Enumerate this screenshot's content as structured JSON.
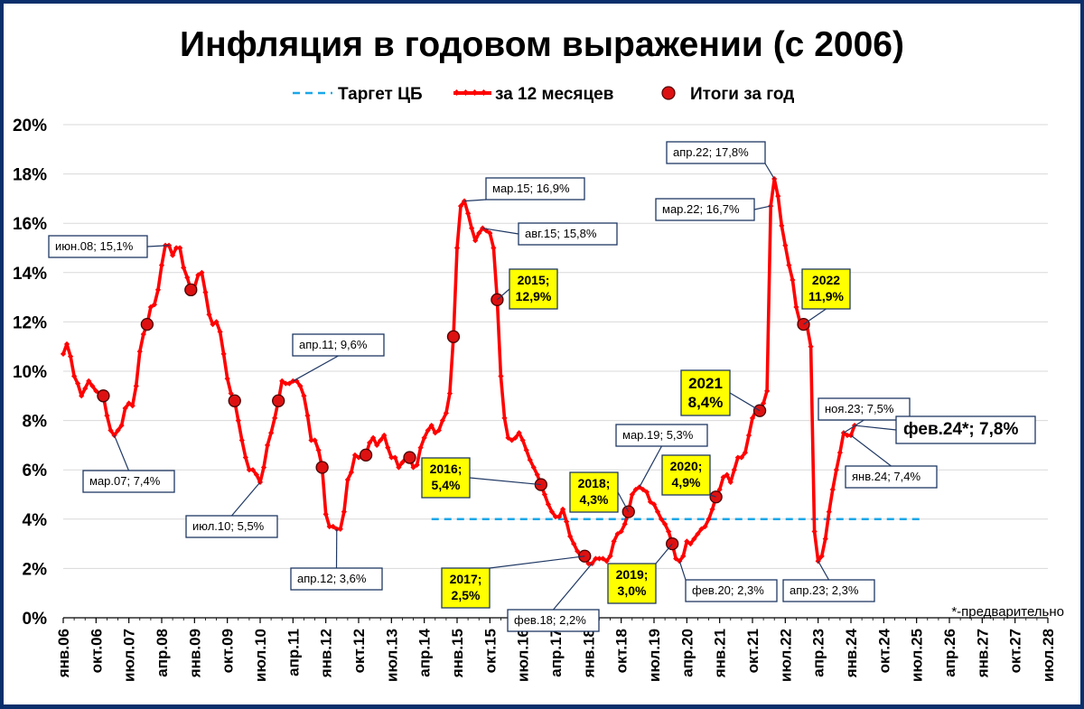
{
  "chart_data": {
    "type": "line",
    "title": "Инфляция в годовом выражении (с 2006)",
    "legend": {
      "placement": "top",
      "items": [
        "Таргет ЦБ",
        "за 12 месяцев",
        "Итоги за год"
      ]
    },
    "footnote": "*-предварительно",
    "y_ticks": [
      "0%",
      "2%",
      "4%",
      "6%",
      "8%",
      "10%",
      "12%",
      "14%",
      "16%",
      "18%",
      "20%"
    ],
    "ylim": [
      0,
      20
    ],
    "x_ticks": [
      "янв.06",
      "окт.06",
      "июл.07",
      "апр.08",
      "янв.09",
      "окт.09",
      "июл.10",
      "апр.11",
      "янв.12",
      "окт.12",
      "июл.13",
      "апр.14",
      "янв.15",
      "окт.15",
      "июл.16",
      "апр.17",
      "янв.18",
      "окт.18",
      "июл.19",
      "апр.20",
      "янв.21",
      "окт.21",
      "июл.22",
      "апр.23",
      "янв.24",
      "окт.24",
      "июл.25",
      "апр.26",
      "янв.27",
      "окт.27",
      "июл.28"
    ],
    "x_range": [
      "2006-01",
      "2028-07"
    ],
    "series": [
      {
        "name": "за 12 месяцев",
        "color": "#ff0000",
        "points": [
          [
            "2006-01",
            10.7
          ],
          [
            "2006-02",
            11.1
          ],
          [
            "2006-03",
            10.6
          ],
          [
            "2006-04",
            9.8
          ],
          [
            "2006-05",
            9.5
          ],
          [
            "2006-06",
            9.0
          ],
          [
            "2006-07",
            9.3
          ],
          [
            "2006-08",
            9.6
          ],
          [
            "2006-09",
            9.4
          ],
          [
            "2006-10",
            9.2
          ],
          [
            "2006-11",
            9.1
          ],
          [
            "2006-12",
            9.0
          ],
          [
            "2007-01",
            8.2
          ],
          [
            "2007-02",
            7.6
          ],
          [
            "2007-03",
            7.4
          ],
          [
            "2007-04",
            7.6
          ],
          [
            "2007-05",
            7.8
          ],
          [
            "2007-06",
            8.5
          ],
          [
            "2007-07",
            8.7
          ],
          [
            "2007-08",
            8.6
          ],
          [
            "2007-09",
            9.4
          ],
          [
            "2007-10",
            10.8
          ],
          [
            "2007-11",
            11.5
          ],
          [
            "2007-12",
            11.9
          ],
          [
            "2008-01",
            12.6
          ],
          [
            "2008-02",
            12.7
          ],
          [
            "2008-03",
            13.3
          ],
          [
            "2008-04",
            14.3
          ],
          [
            "2008-05",
            15.1
          ],
          [
            "2008-06",
            15.1
          ],
          [
            "2008-07",
            14.7
          ],
          [
            "2008-08",
            15.0
          ],
          [
            "2008-09",
            15.0
          ],
          [
            "2008-10",
            14.2
          ],
          [
            "2008-11",
            13.8
          ],
          [
            "2008-12",
            13.3
          ],
          [
            "2009-01",
            13.4
          ],
          [
            "2009-02",
            13.9
          ],
          [
            "2009-03",
            14.0
          ],
          [
            "2009-04",
            13.2
          ],
          [
            "2009-05",
            12.3
          ],
          [
            "2009-06",
            11.9
          ],
          [
            "2009-07",
            12.0
          ],
          [
            "2009-08",
            11.6
          ],
          [
            "2009-09",
            10.7
          ],
          [
            "2009-10",
            9.7
          ],
          [
            "2009-11",
            9.1
          ],
          [
            "2009-12",
            8.8
          ],
          [
            "2010-01",
            8.0
          ],
          [
            "2010-02",
            7.2
          ],
          [
            "2010-03",
            6.5
          ],
          [
            "2010-04",
            6.0
          ],
          [
            "2010-05",
            6.0
          ],
          [
            "2010-06",
            5.8
          ],
          [
            "2010-07",
            5.5
          ],
          [
            "2010-08",
            6.1
          ],
          [
            "2010-09",
            7.0
          ],
          [
            "2010-10",
            7.5
          ],
          [
            "2010-11",
            8.1
          ],
          [
            "2010-12",
            8.8
          ],
          [
            "2011-01",
            9.6
          ],
          [
            "2011-02",
            9.5
          ],
          [
            "2011-03",
            9.5
          ],
          [
            "2011-04",
            9.6
          ],
          [
            "2011-05",
            9.6
          ],
          [
            "2011-06",
            9.4
          ],
          [
            "2011-07",
            9.0
          ],
          [
            "2011-08",
            8.2
          ],
          [
            "2011-09",
            7.2
          ],
          [
            "2011-10",
            7.2
          ],
          [
            "2011-11",
            6.8
          ],
          [
            "2011-12",
            6.1
          ],
          [
            "2012-01",
            4.2
          ],
          [
            "2012-02",
            3.7
          ],
          [
            "2012-03",
            3.7
          ],
          [
            "2012-04",
            3.6
          ],
          [
            "2012-05",
            3.6
          ],
          [
            "2012-06",
            4.3
          ],
          [
            "2012-07",
            5.6
          ],
          [
            "2012-08",
            5.9
          ],
          [
            "2012-09",
            6.6
          ],
          [
            "2012-10",
            6.5
          ],
          [
            "2012-11",
            6.5
          ],
          [
            "2012-12",
            6.6
          ],
          [
            "2013-01",
            7.1
          ],
          [
            "2013-02",
            7.3
          ],
          [
            "2013-03",
            7.0
          ],
          [
            "2013-04",
            7.2
          ],
          [
            "2013-05",
            7.4
          ],
          [
            "2013-06",
            6.9
          ],
          [
            "2013-07",
            6.5
          ],
          [
            "2013-08",
            6.5
          ],
          [
            "2013-09",
            6.1
          ],
          [
            "2013-10",
            6.3
          ],
          [
            "2013-11",
            6.5
          ],
          [
            "2013-12",
            6.5
          ],
          [
            "2014-01",
            6.1
          ],
          [
            "2014-02",
            6.2
          ],
          [
            "2014-03",
            6.9
          ],
          [
            "2014-04",
            7.3
          ],
          [
            "2014-05",
            7.6
          ],
          [
            "2014-06",
            7.8
          ],
          [
            "2014-07",
            7.5
          ],
          [
            "2014-08",
            7.6
          ],
          [
            "2014-09",
            8.0
          ],
          [
            "2014-10",
            8.3
          ],
          [
            "2014-11",
            9.1
          ],
          [
            "2014-12",
            11.4
          ],
          [
            "2015-01",
            15.0
          ],
          [
            "2015-02",
            16.7
          ],
          [
            "2015-03",
            16.9
          ],
          [
            "2015-04",
            16.4
          ],
          [
            "2015-05",
            15.8
          ],
          [
            "2015-06",
            15.3
          ],
          [
            "2015-07",
            15.6
          ],
          [
            "2015-08",
            15.8
          ],
          [
            "2015-09",
            15.7
          ],
          [
            "2015-10",
            15.6
          ],
          [
            "2015-11",
            15.0
          ],
          [
            "2015-12",
            12.9
          ],
          [
            "2016-01",
            9.8
          ],
          [
            "2016-02",
            8.1
          ],
          [
            "2016-03",
            7.3
          ],
          [
            "2016-04",
            7.2
          ],
          [
            "2016-05",
            7.3
          ],
          [
            "2016-06",
            7.5
          ],
          [
            "2016-07",
            7.2
          ],
          [
            "2016-08",
            6.8
          ],
          [
            "2016-09",
            6.4
          ],
          [
            "2016-10",
            6.1
          ],
          [
            "2016-11",
            5.8
          ],
          [
            "2016-12",
            5.4
          ],
          [
            "2017-01",
            5.0
          ],
          [
            "2017-02",
            4.6
          ],
          [
            "2017-03",
            4.3
          ],
          [
            "2017-04",
            4.1
          ],
          [
            "2017-05",
            4.1
          ],
          [
            "2017-06",
            4.4
          ],
          [
            "2017-07",
            3.9
          ],
          [
            "2017-08",
            3.3
          ],
          [
            "2017-09",
            3.0
          ],
          [
            "2017-10",
            2.7
          ],
          [
            "2017-11",
            2.5
          ],
          [
            "2017-12",
            2.5
          ],
          [
            "2018-01",
            2.2
          ],
          [
            "2018-02",
            2.2
          ],
          [
            "2018-03",
            2.4
          ],
          [
            "2018-04",
            2.4
          ],
          [
            "2018-05",
            2.4
          ],
          [
            "2018-06",
            2.3
          ],
          [
            "2018-07",
            2.5
          ],
          [
            "2018-08",
            3.1
          ],
          [
            "2018-09",
            3.4
          ],
          [
            "2018-10",
            3.5
          ],
          [
            "2018-11",
            3.8
          ],
          [
            "2018-12",
            4.3
          ],
          [
            "2019-01",
            5.0
          ],
          [
            "2019-02",
            5.2
          ],
          [
            "2019-03",
            5.3
          ],
          [
            "2019-04",
            5.2
          ],
          [
            "2019-05",
            5.1
          ],
          [
            "2019-06",
            4.7
          ],
          [
            "2019-07",
            4.6
          ],
          [
            "2019-08",
            4.3
          ],
          [
            "2019-09",
            4.0
          ],
          [
            "2019-10",
            3.8
          ],
          [
            "2019-11",
            3.5
          ],
          [
            "2019-12",
            3.0
          ],
          [
            "2020-01",
            2.4
          ],
          [
            "2020-02",
            2.3
          ],
          [
            "2020-03",
            2.5
          ],
          [
            "2020-04",
            3.1
          ],
          [
            "2020-05",
            3.0
          ],
          [
            "2020-06",
            3.2
          ],
          [
            "2020-07",
            3.4
          ],
          [
            "2020-08",
            3.6
          ],
          [
            "2020-09",
            3.7
          ],
          [
            "2020-10",
            4.0
          ],
          [
            "2020-11",
            4.4
          ],
          [
            "2020-12",
            4.9
          ],
          [
            "2021-01",
            5.2
          ],
          [
            "2021-02",
            5.7
          ],
          [
            "2021-03",
            5.8
          ],
          [
            "2021-04",
            5.5
          ],
          [
            "2021-05",
            6.0
          ],
          [
            "2021-06",
            6.5
          ],
          [
            "2021-07",
            6.5
          ],
          [
            "2021-08",
            6.7
          ],
          [
            "2021-09",
            7.4
          ],
          [
            "2021-10",
            8.1
          ],
          [
            "2021-11",
            8.4
          ],
          [
            "2021-12",
            8.4
          ],
          [
            "2022-01",
            8.7
          ],
          [
            "2022-02",
            9.2
          ],
          [
            "2022-03",
            16.7
          ],
          [
            "2022-04",
            17.8
          ],
          [
            "2022-05",
            17.1
          ],
          [
            "2022-06",
            15.9
          ],
          [
            "2022-07",
            15.1
          ],
          [
            "2022-08",
            14.3
          ],
          [
            "2022-09",
            13.7
          ],
          [
            "2022-10",
            12.6
          ],
          [
            "2022-11",
            12.0
          ],
          [
            "2022-12",
            11.9
          ],
          [
            "2023-01",
            11.8
          ],
          [
            "2023-02",
            11.0
          ],
          [
            "2023-03",
            3.5
          ],
          [
            "2023-04",
            2.3
          ],
          [
            "2023-05",
            2.5
          ],
          [
            "2023-06",
            3.2
          ],
          [
            "2023-07",
            4.3
          ],
          [
            "2023-08",
            5.2
          ],
          [
            "2023-09",
            6.0
          ],
          [
            "2023-10",
            6.7
          ],
          [
            "2023-11",
            7.5
          ],
          [
            "2023-12",
            7.4
          ],
          [
            "2024-01",
            7.4
          ],
          [
            "2024-02",
            7.8
          ]
        ]
      },
      {
        "name": "Таргет ЦБ",
        "color": "#1aa7e8",
        "points": [
          [
            "2014-06",
            4.0
          ],
          [
            "2025-09",
            4.0
          ]
        ]
      },
      {
        "name": "Итоги за год",
        "color": "#dd1111",
        "points": [
          [
            "2006-12",
            9.0
          ],
          [
            "2007-12",
            11.9
          ],
          [
            "2008-12",
            13.3
          ],
          [
            "2009-12",
            8.8
          ],
          [
            "2010-12",
            8.8
          ],
          [
            "2011-12",
            6.1
          ],
          [
            "2012-12",
            6.6
          ],
          [
            "2013-12",
            6.5
          ],
          [
            "2014-12",
            11.4
          ],
          [
            "2015-12",
            12.9
          ],
          [
            "2016-12",
            5.4
          ],
          [
            "2017-12",
            2.5
          ],
          [
            "2018-12",
            4.3
          ],
          [
            "2019-12",
            3.0
          ],
          [
            "2020-12",
            4.9
          ],
          [
            "2021-12",
            8.4
          ],
          [
            "2022-12",
            11.9
          ]
        ]
      }
    ],
    "annotations": [
      {
        "text": "июн.08; 15,1%",
        "x": "2008-06",
        "y": 15.1,
        "style": "plain"
      },
      {
        "text": "мар.07; 7,4%",
        "x": "2007-03",
        "y": 7.4,
        "style": "plain"
      },
      {
        "text": "июл.10; 5,5%",
        "x": "2010-07",
        "y": 5.5,
        "style": "plain"
      },
      {
        "text": "апр.11; 9,6%",
        "x": "2011-04",
        "y": 9.6,
        "style": "plain"
      },
      {
        "text": "апр.12; 3,6%",
        "x": "2012-04",
        "y": 3.6,
        "style": "plain"
      },
      {
        "text": "мар.15; 16,9%",
        "x": "2015-03",
        "y": 16.9,
        "style": "plain"
      },
      {
        "text": "авг.15; 15,8%",
        "x": "2015-08",
        "y": 15.8,
        "style": "plain"
      },
      {
        "text": "фев.18; 2,2%",
        "x": "2018-02",
        "y": 2.2,
        "style": "plain"
      },
      {
        "text": "мар.19; 5,3%",
        "x": "2019-03",
        "y": 5.3,
        "style": "plain"
      },
      {
        "text": "фев.20; 2,3%",
        "x": "2020-02",
        "y": 2.3,
        "style": "plain"
      },
      {
        "text": "апр.22; 17,8%",
        "x": "2022-04",
        "y": 17.8,
        "style": "plain"
      },
      {
        "text": "мар.22; 16,7%",
        "x": "2022-03",
        "y": 16.7,
        "style": "plain"
      },
      {
        "text": "апр.23; 2,3%",
        "x": "2023-04",
        "y": 2.3,
        "style": "plain"
      },
      {
        "text": "ноя.23; 7,5%",
        "x": "2023-11",
        "y": 7.5,
        "style": "plain"
      },
      {
        "text": "янв.24; 7,4%",
        "x": "2024-01",
        "y": 7.4,
        "style": "plain"
      },
      {
        "text": "фев.24*; 7,8%",
        "x": "2024-02",
        "y": 7.8,
        "style": "large"
      },
      {
        "text": [
          "2015;",
          "12,9%"
        ],
        "x": "2015-12",
        "y": 12.9,
        "style": "yellow"
      },
      {
        "text": [
          "2016;",
          "5,4%"
        ],
        "x": "2016-12",
        "y": 5.4,
        "style": "yellow"
      },
      {
        "text": [
          "2017;",
          "2,5%"
        ],
        "x": "2017-12",
        "y": 2.5,
        "style": "yellow"
      },
      {
        "text": [
          "2018;",
          "4,3%"
        ],
        "x": "2018-12",
        "y": 4.3,
        "style": "yellow"
      },
      {
        "text": [
          "2019;",
          "3,0%"
        ],
        "x": "2019-12",
        "y": 3.0,
        "style": "yellow"
      },
      {
        "text": [
          "2020;",
          "4,9%"
        ],
        "x": "2020-12",
        "y": 4.9,
        "style": "yellow"
      },
      {
        "text": [
          "2021",
          "8,4%"
        ],
        "x": "2021-12",
        "y": 8.4,
        "style": "yellow-large"
      },
      {
        "text": [
          "2022",
          "11,9%"
        ],
        "x": "2022-12",
        "y": 11.9,
        "style": "yellow"
      }
    ]
  }
}
